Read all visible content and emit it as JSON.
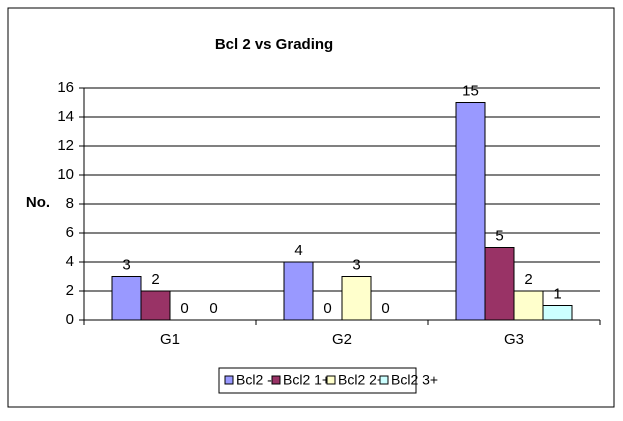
{
  "chart_data": {
    "type": "bar",
    "title": "Bcl 2 vs Grading",
    "y_label": "No.",
    "categories": [
      "G1",
      "G2",
      "G3"
    ],
    "series": [
      {
        "name": "Bcl2 -",
        "color": "#9999ff",
        "values": [
          3,
          4,
          15
        ]
      },
      {
        "name": "Bcl2 1+",
        "color": "#993366",
        "values": [
          2,
          0,
          5
        ]
      },
      {
        "name": "Bcl2 2+",
        "color": "#ffffcc",
        "values": [
          0,
          3,
          2
        ]
      },
      {
        "name": "Bcl2 3+",
        "color": "#ccffff",
        "values": [
          0,
          0,
          1
        ]
      }
    ],
    "ylim": [
      0,
      16
    ],
    "yticks": [
      0,
      2,
      4,
      6,
      8,
      10,
      12,
      14,
      16
    ],
    "grid": true,
    "legend": "bottom"
  }
}
